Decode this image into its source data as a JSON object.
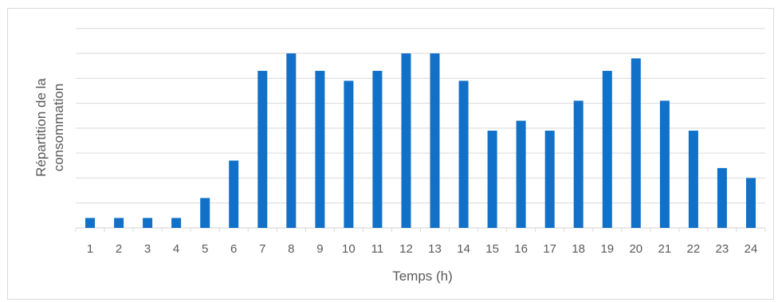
{
  "chart_data": {
    "type": "bar",
    "title": "",
    "xlabel": "Temps (h)",
    "ylabel_lines": [
      "Répartition de la",
      "consommation"
    ],
    "categories": [
      "1",
      "2",
      "3",
      "4",
      "5",
      "6",
      "7",
      "8",
      "9",
      "10",
      "11",
      "12",
      "13",
      "14",
      "15",
      "16",
      "17",
      "18",
      "19",
      "20",
      "21",
      "22",
      "23",
      "24"
    ],
    "values": [
      0.4,
      0.4,
      0.4,
      0.4,
      1.2,
      2.7,
      6.3,
      7.0,
      6.3,
      5.9,
      6.3,
      7.0,
      7.0,
      5.9,
      3.9,
      4.3,
      3.9,
      5.1,
      6.3,
      6.8,
      5.1,
      3.9,
      2.4,
      2.0
    ],
    "ylim": [
      0,
      7
    ],
    "y_ticks_shown": false,
    "grid": true,
    "legend": "none",
    "colors": {
      "bar": "#1170c8",
      "grid": "#d9d9d9",
      "text": "#595959",
      "border": "#d9d9d9"
    }
  }
}
